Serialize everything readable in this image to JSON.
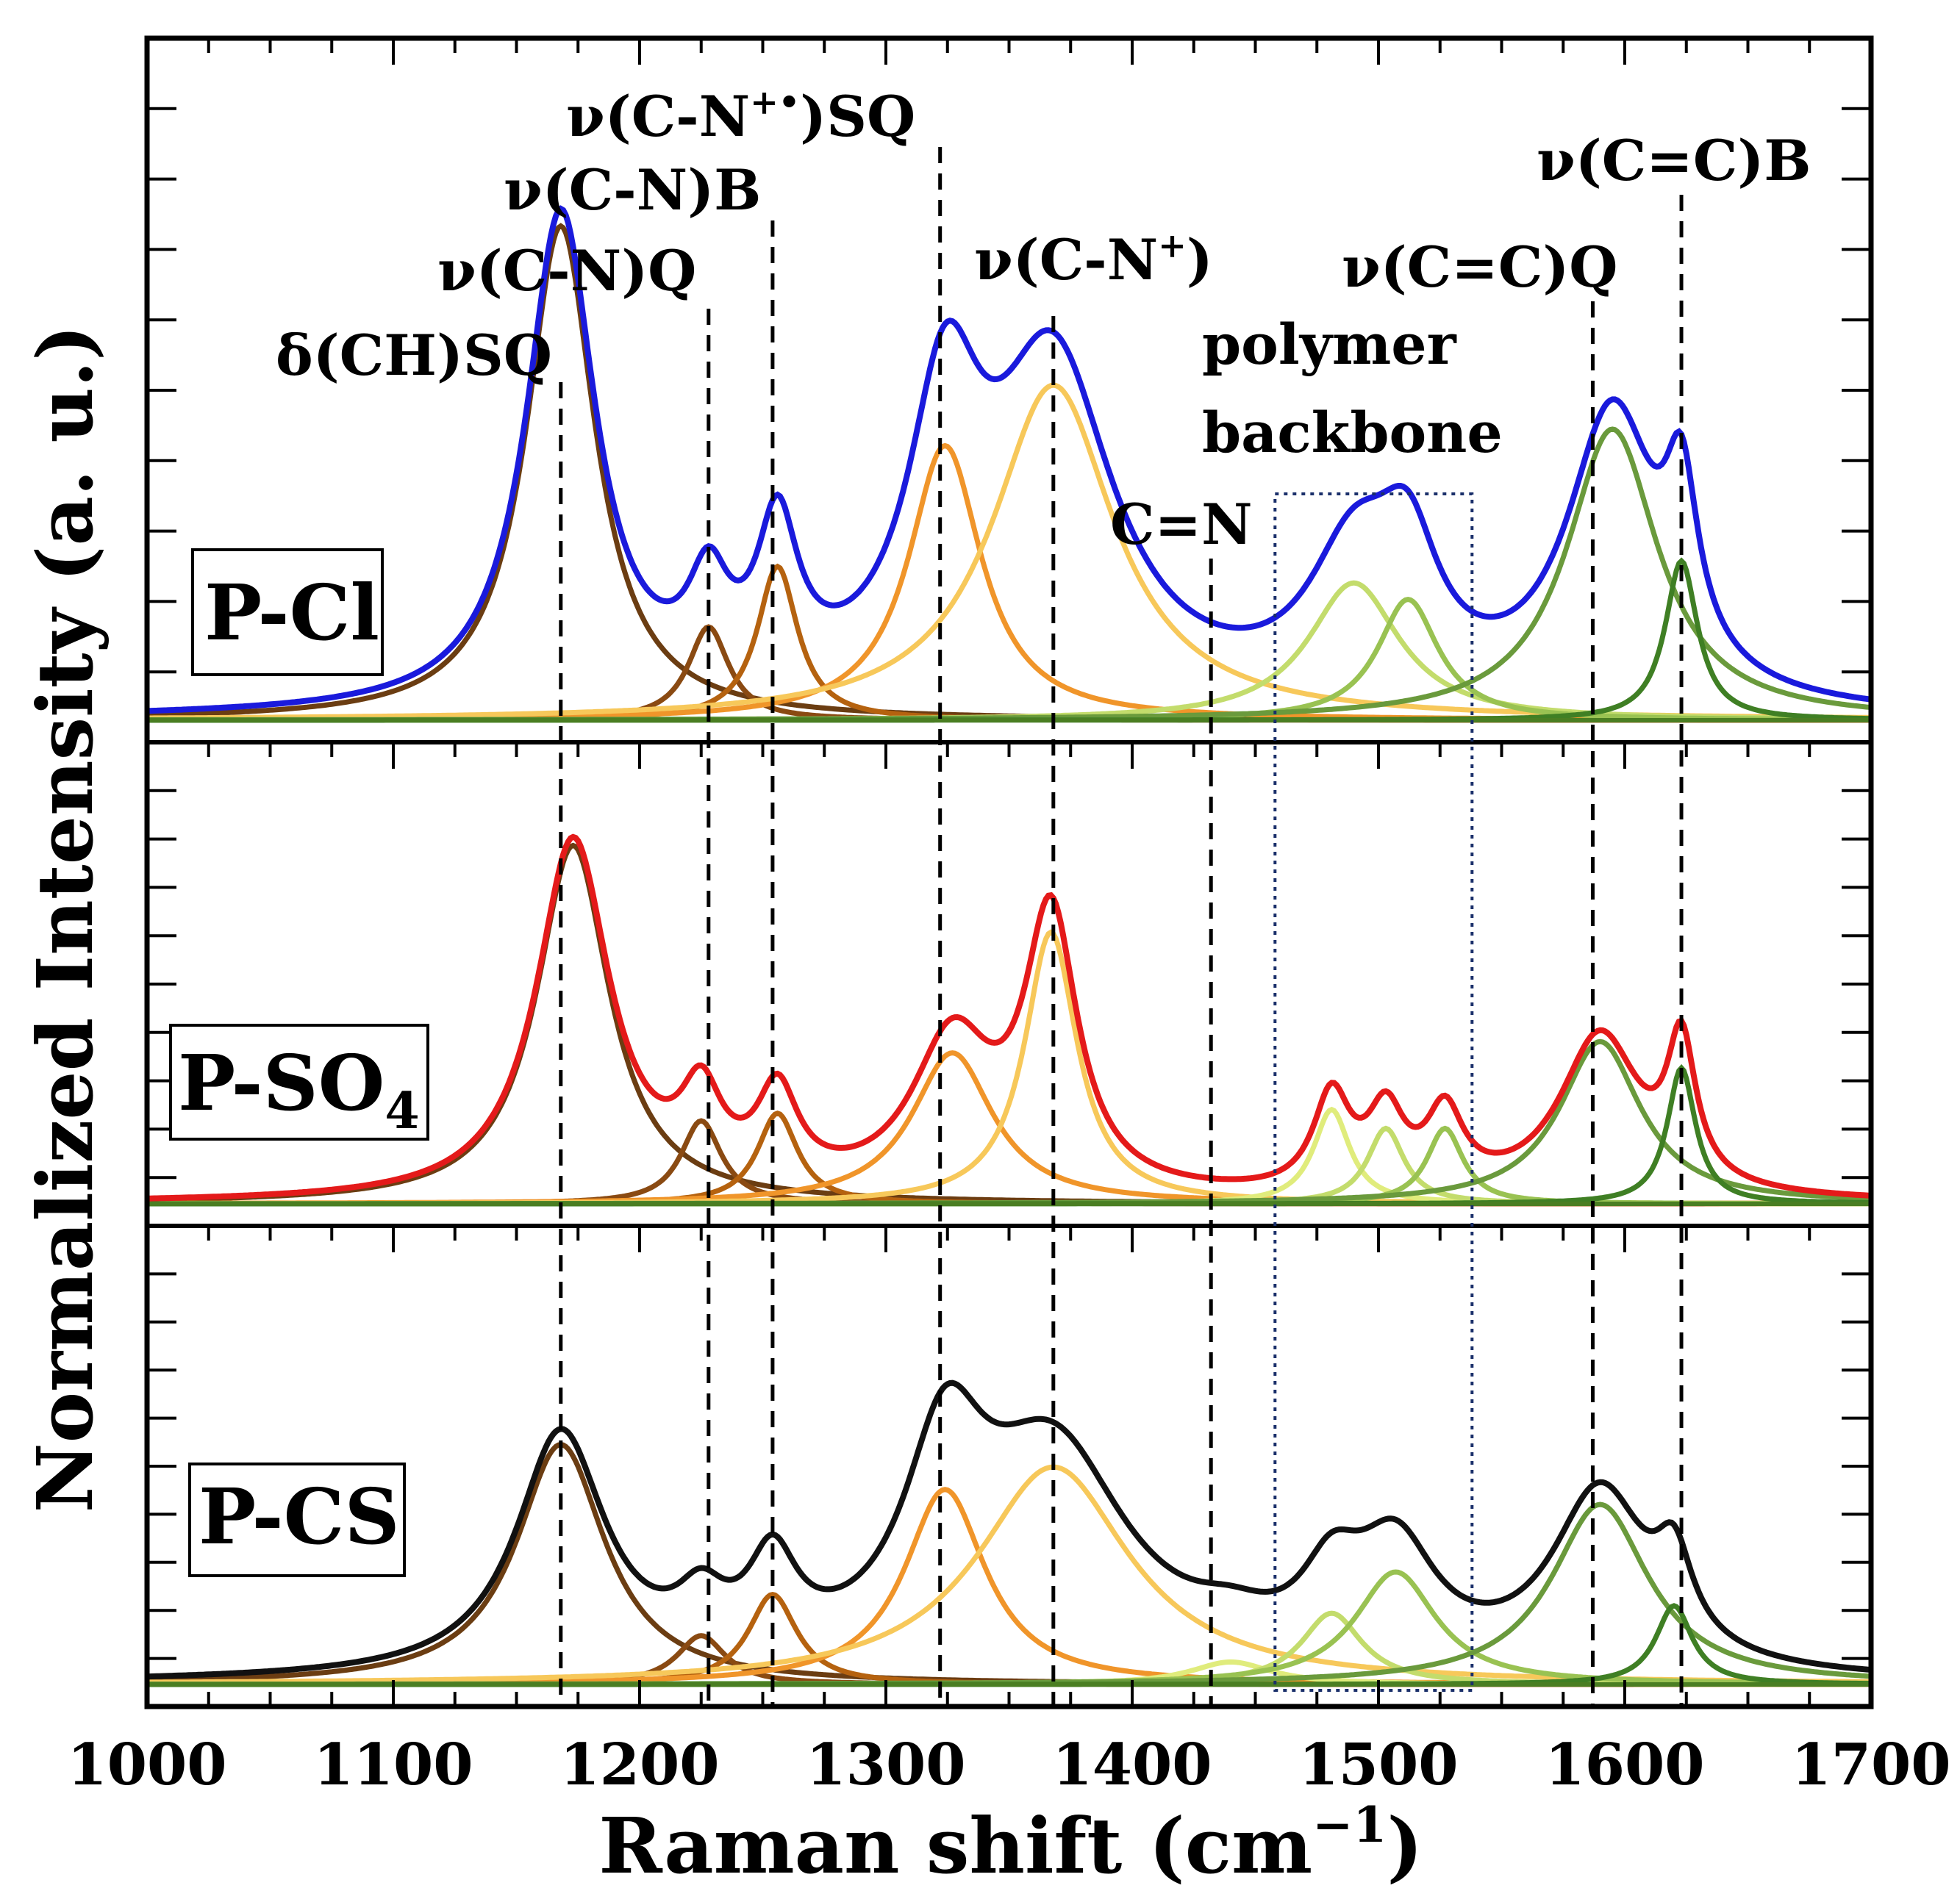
{
  "chart_data": {
    "type": "line",
    "title": "",
    "xlabel": "Raman shift (cm",
    "xlabel_sup": "−1",
    "xlabel_close": ")",
    "ylabel": "Normalized Intensity (a. u.)",
    "xlim": [
      1000,
      1700
    ],
    "xticks": [
      1000,
      1100,
      1200,
      1300,
      1400,
      1500,
      1600,
      1700
    ],
    "grid": false,
    "component_colors": [
      "#6b3d12",
      "#8a4a12",
      "#b5620f",
      "#f0952a",
      "#f7c85a",
      "#e0ec7c",
      "#c3dc6c",
      "#99c252",
      "#6a9a3c",
      "#3f7f24"
    ],
    "reference_lines": [
      {
        "label": "δ(CH)SQ",
        "x": 1168
      },
      {
        "label": "ν(C-N)Q",
        "x": 1228
      },
      {
        "label": "ν(C-N)B",
        "x": 1254
      },
      {
        "label": "ν(C-N+•)SQ",
        "x": 1322
      },
      {
        "label": "ν(C-N+)",
        "x": 1368
      },
      {
        "label": "C=N",
        "x": 1432
      },
      {
        "label": "ν(C=C)Q",
        "x": 1587
      },
      {
        "label": "ν(C=C)B",
        "x": 1623
      }
    ],
    "peak_labels": {
      "dch": "δ(CH)SQ",
      "cnq": "ν(C-N)Q",
      "cnb": "ν(C-N)B",
      "cnsq_pre": "ν(C-N",
      "cnsq_sup": "+•",
      "cnsq_post": ")SQ",
      "cnp_pre": "ν(C-N",
      "cnp_sup": "+",
      "cnp_post": ")",
      "cn": "C=N",
      "ccq": "ν(C=C)Q",
      "ccb": "ν(C=C)B",
      "backbone_line1": "polymer",
      "backbone_line2": "backbone"
    },
    "backbone_region": [
      1458,
      1538
    ],
    "panels": [
      {
        "label": "P-Cl",
        "label_sub": "",
        "fit_color": "#1a1adc",
        "ylim": [
          0,
          1.0
        ],
        "components": [
          {
            "center": 1168,
            "height": 0.9,
            "width": 34
          },
          {
            "center": 1228,
            "height": 0.17,
            "width": 20
          },
          {
            "center": 1256,
            "height": 0.28,
            "width": 20
          },
          {
            "center": 1324,
            "height": 0.5,
            "width": 36
          },
          {
            "center": 1368,
            "height": 0.61,
            "width": 60
          },
          {
            "center": 1490,
            "height": 0.25,
            "width": 45
          },
          {
            "center": 1512,
            "height": 0.22,
            "width": 30
          },
          {
            "center": 1595,
            "height": 0.53,
            "width": 45
          },
          {
            "center": 1623,
            "height": 0.29,
            "width": 16
          }
        ]
      },
      {
        "label": "P-SO",
        "label_sub": "4",
        "fit_color": "#e41a1a",
        "ylim": [
          0,
          1.0
        ],
        "components": [
          {
            "center": 1173,
            "height": 0.95,
            "width": 36
          },
          {
            "center": 1225,
            "height": 0.22,
            "width": 20
          },
          {
            "center": 1256,
            "height": 0.24,
            "width": 20
          },
          {
            "center": 1327,
            "height": 0.4,
            "width": 40
          },
          {
            "center": 1367,
            "height": 0.72,
            "width": 26
          },
          {
            "center": 1481,
            "height": 0.25,
            "width": 18
          },
          {
            "center": 1503,
            "height": 0.2,
            "width": 18
          },
          {
            "center": 1527,
            "height": 0.2,
            "width": 18
          },
          {
            "center": 1590,
            "height": 0.43,
            "width": 40
          },
          {
            "center": 1623,
            "height": 0.36,
            "width": 14
          }
        ]
      },
      {
        "label": "P-CS",
        "label_sub": "",
        "fit_color": "#111111",
        "ylim": [
          0,
          1.0
        ],
        "components": [
          {
            "center": 1168,
            "height": 0.64,
            "width": 44
          },
          {
            "center": 1225,
            "height": 0.13,
            "width": 24
          },
          {
            "center": 1254,
            "height": 0.24,
            "width": 24
          },
          {
            "center": 1324,
            "height": 0.52,
            "width": 40
          },
          {
            "center": 1368,
            "height": 0.58,
            "width": 75
          },
          {
            "center": 1440,
            "height": 0.06,
            "width": 40
          },
          {
            "center": 1481,
            "height": 0.19,
            "width": 30
          },
          {
            "center": 1507,
            "height": 0.3,
            "width": 40
          },
          {
            "center": 1590,
            "height": 0.48,
            "width": 48
          },
          {
            "center": 1620,
            "height": 0.21,
            "width": 18
          }
        ]
      }
    ]
  }
}
